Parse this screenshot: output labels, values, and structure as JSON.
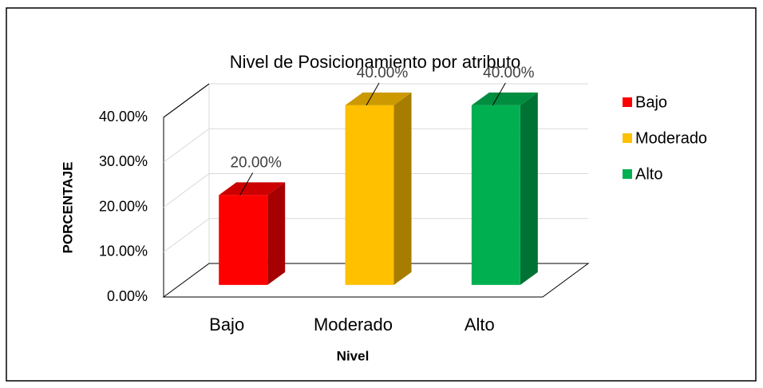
{
  "chart_data": {
    "type": "bar3d",
    "title": "Nivel de Posicionamiento por atributo",
    "x_label": "Nivel",
    "y_label": "PORCENTAJE",
    "categories": [
      "Bajo",
      "Moderado",
      "Alto"
    ],
    "values": [
      20,
      40,
      40
    ],
    "value_labels": [
      "20.00%",
      "40.00%",
      "40.00%"
    ],
    "colors": [
      "#ff0000",
      "#ffc000",
      "#00b050"
    ],
    "ylim": [
      0,
      40
    ],
    "yticks": [
      {
        "value": 0,
        "label": "0.00%"
      },
      {
        "value": 10,
        "label": "10.00%"
      },
      {
        "value": 20,
        "label": "20.00%"
      },
      {
        "value": 30,
        "label": "30.00%"
      },
      {
        "value": 40,
        "label": "40.00%"
      }
    ],
    "grid": true,
    "legend": "right"
  }
}
